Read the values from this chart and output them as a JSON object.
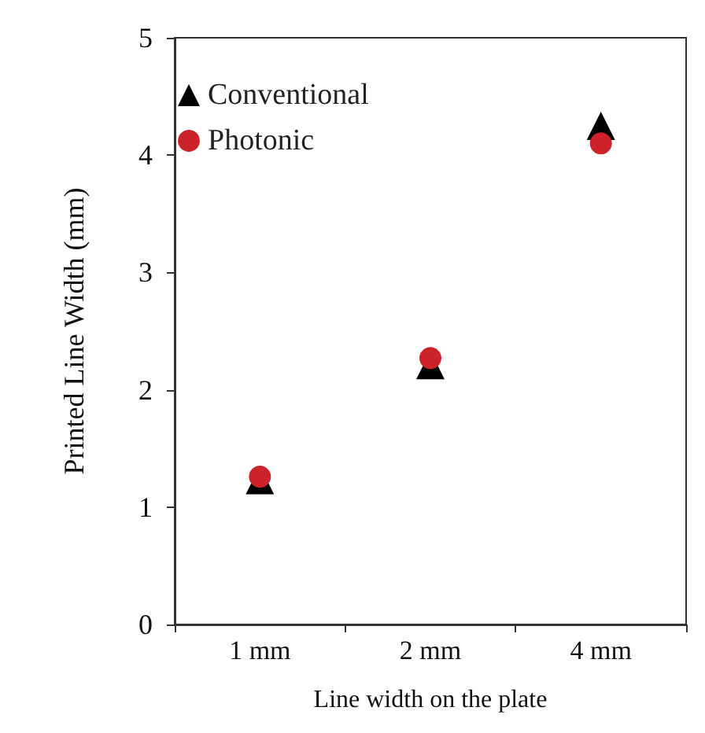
{
  "chart_data": {
    "type": "scatter",
    "xlabel": "Line width on the plate",
    "ylabel": "Printed Line Width (mm)",
    "categories": [
      "1 mm",
      "2 mm",
      "4 mm"
    ],
    "series": [
      {
        "name": "Conventional",
        "color": "#000000",
        "marker": "triangle",
        "values": [
          1.23,
          2.21,
          4.25
        ]
      },
      {
        "name": "Photonic",
        "color": "#cc2229",
        "marker": "circle",
        "values": [
          1.26,
          2.27,
          4.1
        ]
      }
    ],
    "ylim": [
      0,
      5
    ],
    "yticks": [
      0,
      1,
      2,
      3,
      4,
      5
    ],
    "grid": false,
    "legend": "top left"
  }
}
